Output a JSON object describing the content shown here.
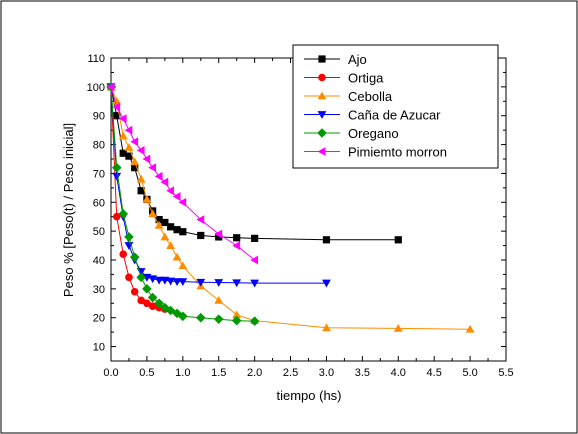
{
  "chart_data": {
    "type": "line",
    "xlabel": "tiempo (hs)",
    "ylabel": "Peso % [Peso(t) / Peso inicial]",
    "xlim": [
      0.0,
      5.5
    ],
    "ylim": [
      5,
      110
    ],
    "x_ticks": [
      "0.0",
      "0.5",
      "1.0",
      "1.5",
      "2.0",
      "2.5",
      "3.0",
      "3.5",
      "4.0",
      "4.5",
      "5.0",
      "5.5"
    ],
    "y_ticks": [
      "10",
      "20",
      "30",
      "40",
      "50",
      "60",
      "70",
      "80",
      "90",
      "100",
      "110"
    ],
    "legend_position": "top-right",
    "grid": false,
    "series": [
      {
        "name": "Ajo",
        "color": "#000000",
        "marker": "square",
        "x": [
          0.0,
          0.08,
          0.17,
          0.25,
          0.33,
          0.42,
          0.5,
          0.58,
          0.67,
          0.75,
          0.83,
          0.92,
          1.0,
          1.25,
          1.5,
          1.75,
          2.0,
          3.0,
          4.0
        ],
        "y": [
          100,
          90,
          77,
          76,
          72,
          64,
          61,
          57,
          54,
          53,
          51.5,
          50.5,
          49.8,
          48.5,
          48,
          47.7,
          47.5,
          47,
          47
        ]
      },
      {
        "name": "Ortiga",
        "color": "#ff0000",
        "marker": "circle",
        "x": [
          0.0,
          0.08,
          0.17,
          0.25,
          0.33,
          0.42,
          0.5,
          0.58,
          0.67,
          0.75
        ],
        "y": [
          100,
          55,
          42,
          34,
          29,
          26,
          25,
          24,
          23.5,
          23
        ]
      },
      {
        "name": "Cebolla",
        "color": "#ff8c00",
        "marker": "triangle-up",
        "x": [
          0.0,
          0.08,
          0.17,
          0.25,
          0.33,
          0.42,
          0.5,
          0.58,
          0.67,
          0.75,
          0.83,
          0.92,
          1.0,
          1.25,
          1.5,
          1.75,
          2.0,
          3.0,
          4.0,
          5.0
        ],
        "y": [
          100,
          95,
          83,
          79,
          74,
          68,
          61,
          56,
          52,
          48,
          45,
          41,
          38,
          31,
          26,
          21,
          19,
          16.5,
          16.3,
          16
        ]
      },
      {
        "name": "Caña de Azucar",
        "color": "#0000ff",
        "marker": "triangle-down",
        "x": [
          0.0,
          0.08,
          0.17,
          0.25,
          0.33,
          0.42,
          0.5,
          0.58,
          0.67,
          0.75,
          0.83,
          0.92,
          1.0,
          1.25,
          1.5,
          1.75,
          2.0,
          3.0
        ],
        "y": [
          100,
          69,
          55,
          45,
          40,
          36,
          34,
          33.5,
          33,
          33,
          32.7,
          32.5,
          32.5,
          32.3,
          32.2,
          32.1,
          32,
          32
        ]
      },
      {
        "name": "Oregano",
        "color": "#009900",
        "marker": "diamond",
        "x": [
          0.0,
          0.08,
          0.17,
          0.25,
          0.33,
          0.42,
          0.5,
          0.58,
          0.67,
          0.75,
          0.83,
          0.92,
          1.0,
          1.25,
          1.5,
          1.75,
          2.0
        ],
        "y": [
          100,
          72,
          56,
          48,
          41,
          34,
          30,
          27,
          25,
          23.5,
          22.5,
          21.5,
          20.5,
          20,
          19.5,
          19,
          18.8
        ]
      },
      {
        "name": "Pimiemto morron",
        "color": "#ff00ff",
        "marker": "triangle-left",
        "x": [
          0.0,
          0.08,
          0.17,
          0.25,
          0.33,
          0.42,
          0.5,
          0.58,
          0.67,
          0.75,
          0.83,
          0.92,
          1.0,
          1.25,
          1.5,
          1.75,
          2.0
        ],
        "y": [
          100,
          93,
          89,
          85,
          81,
          78,
          75,
          72,
          69,
          67,
          64,
          62,
          60,
          54,
          49,
          45,
          40
        ]
      }
    ]
  }
}
